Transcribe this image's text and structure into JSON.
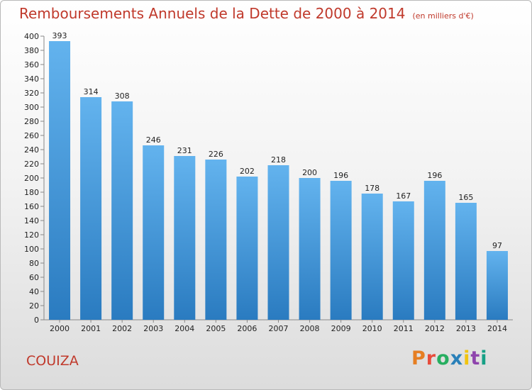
{
  "header": {
    "title": "Remboursements Annuels de la Dette de 2000 à 2014",
    "unit": "(en milliers d'€)"
  },
  "footer": {
    "commune": "COUIZA",
    "logo_letters": [
      "P",
      "r",
      "o",
      "x",
      "i",
      "t",
      "i"
    ]
  },
  "colors": {
    "title": "#c0392b",
    "bar_top": "#63b3ee",
    "bar_bottom": "#2a7bc0",
    "logo": [
      "#e67e22",
      "#e74c3c",
      "#27ae60",
      "#2980b9",
      "#f1c40f",
      "#8e44ad",
      "#16a085"
    ]
  },
  "chart_data": {
    "type": "bar",
    "title": "Remboursements Annuels de la Dette de 2000 à 2014",
    "subtitle": "(en milliers d'€)",
    "xlabel": "",
    "ylabel": "",
    "categories": [
      "2000",
      "2001",
      "2002",
      "2003",
      "2004",
      "2005",
      "2006",
      "2007",
      "2008",
      "2009",
      "2010",
      "2011",
      "2012",
      "2013",
      "2014"
    ],
    "values": [
      393,
      314,
      308,
      246,
      231,
      226,
      202,
      218,
      200,
      196,
      178,
      167,
      196,
      165,
      97
    ],
    "ylim": [
      0,
      400
    ],
    "ytick_step": 20,
    "grid": false,
    "data_labels": true
  }
}
